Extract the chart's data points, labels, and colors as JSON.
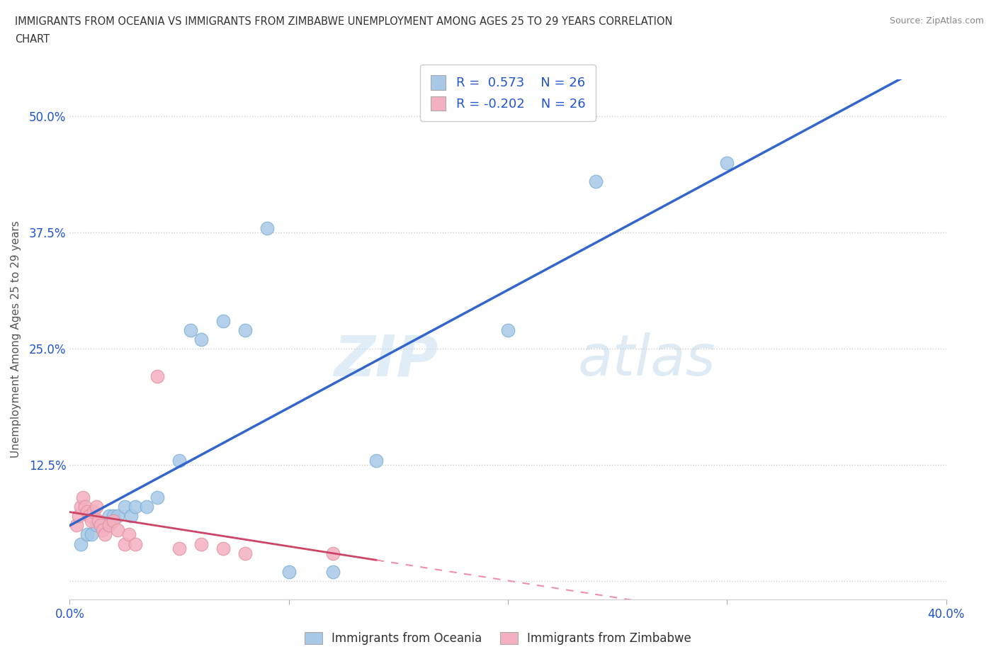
{
  "title_line1": "IMMIGRANTS FROM OCEANIA VS IMMIGRANTS FROM ZIMBABWE UNEMPLOYMENT AMONG AGES 25 TO 29 YEARS CORRELATION",
  "title_line2": "CHART",
  "source": "Source: ZipAtlas.com",
  "xlabel_oceania": "Immigrants from Oceania",
  "xlabel_zimbabwe": "Immigrants from Zimbabwe",
  "ylabel": "Unemployment Among Ages 25 to 29 years",
  "xlim": [
    0.0,
    0.4
  ],
  "ylim": [
    -0.02,
    0.54
  ],
  "grid_color": "#cccccc",
  "background_color": "#ffffff",
  "oceania_color": "#a8c8e8",
  "oceania_edge": "#7aaed0",
  "zimbabwe_color": "#f4b0c0",
  "zimbabwe_edge": "#e090a0",
  "trend_oceania_color": "#3366cc",
  "trend_zimbabwe_solid_color": "#cc4466",
  "trend_zimbabwe_dash_color": "#f090a8",
  "R_oceania": 0.573,
  "N_oceania": 26,
  "R_zimbabwe": -0.202,
  "N_zimbabwe": 26,
  "legend_text_color": "#2255cc",
  "watermark_zip": "ZIP",
  "watermark_atlas": "atlas",
  "oceania_x": [
    0.005,
    0.008,
    0.01,
    0.012,
    0.014,
    0.016,
    0.018,
    0.02,
    0.022,
    0.025,
    0.028,
    0.03,
    0.035,
    0.04,
    0.05,
    0.055,
    0.06,
    0.07,
    0.08,
    0.09,
    0.1,
    0.12,
    0.14,
    0.2,
    0.24,
    0.3
  ],
  "oceania_y": [
    0.04,
    0.05,
    0.05,
    0.06,
    0.06,
    0.06,
    0.07,
    0.07,
    0.07,
    0.08,
    0.07,
    0.08,
    0.08,
    0.09,
    0.13,
    0.27,
    0.26,
    0.28,
    0.27,
    0.38,
    0.01,
    0.01,
    0.13,
    0.27,
    0.43,
    0.45
  ],
  "zimbabwe_x": [
    0.003,
    0.004,
    0.005,
    0.006,
    0.007,
    0.008,
    0.009,
    0.01,
    0.011,
    0.012,
    0.013,
    0.014,
    0.015,
    0.016,
    0.018,
    0.02,
    0.022,
    0.025,
    0.027,
    0.03,
    0.04,
    0.05,
    0.06,
    0.07,
    0.08,
    0.12
  ],
  "zimbabwe_y": [
    0.06,
    0.07,
    0.08,
    0.09,
    0.08,
    0.075,
    0.07,
    0.065,
    0.075,
    0.08,
    0.065,
    0.06,
    0.055,
    0.05,
    0.06,
    0.065,
    0.055,
    0.04,
    0.05,
    0.04,
    0.22,
    0.035,
    0.04,
    0.035,
    0.03,
    0.03
  ]
}
